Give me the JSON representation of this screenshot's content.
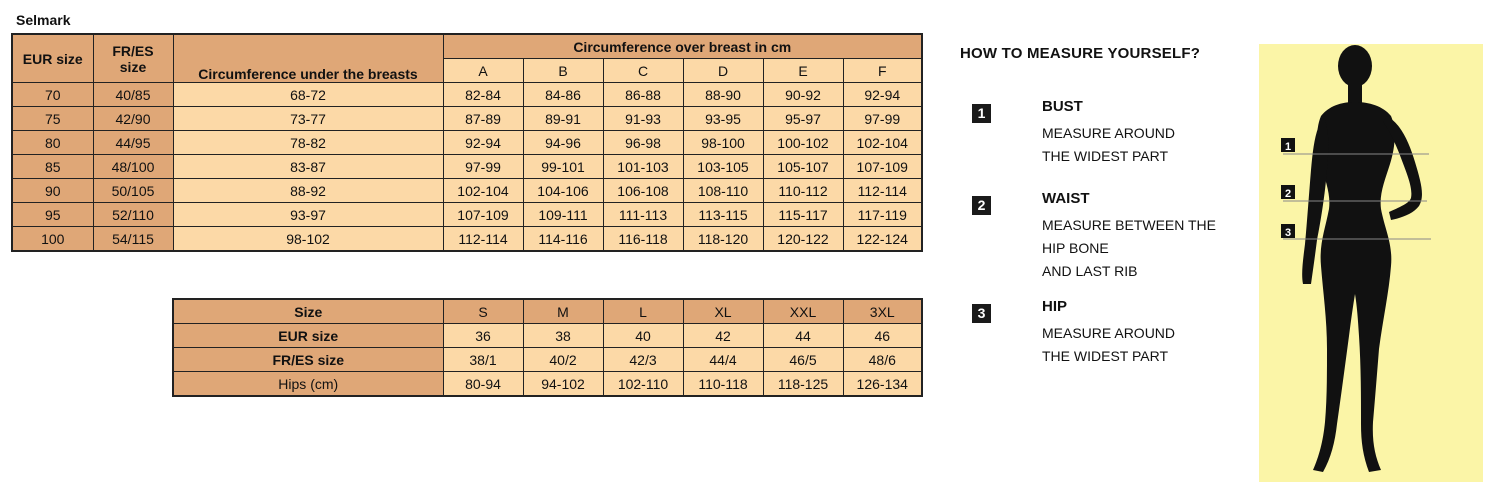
{
  "brand": "Selmark",
  "bra_table": {
    "col_eur": "EUR size",
    "col_fres_1": "FR/ES",
    "col_fres_2": "size",
    "col_under": "Circumference under the breasts",
    "col_over_group": "Circumference over breast in cm",
    "cups": [
      "A",
      "B",
      "C",
      "D",
      "E",
      "F"
    ],
    "rows": [
      {
        "eur": "70",
        "fres": "40/85",
        "under": "68-72",
        "cups": [
          "82-84",
          "84-86",
          "86-88",
          "88-90",
          "90-92",
          "92-94"
        ]
      },
      {
        "eur": "75",
        "fres": "42/90",
        "under": "73-77",
        "cups": [
          "87-89",
          "89-91",
          "91-93",
          "93-95",
          "95-97",
          "97-99"
        ]
      },
      {
        "eur": "80",
        "fres": "44/95",
        "under": "78-82",
        "cups": [
          "92-94",
          "94-96",
          "96-98",
          "98-100",
          "100-102",
          "102-104"
        ]
      },
      {
        "eur": "85",
        "fres": "48/100",
        "under": "83-87",
        "cups": [
          "97-99",
          "99-101",
          "101-103",
          "103-105",
          "105-107",
          "107-109"
        ]
      },
      {
        "eur": "90",
        "fres": "50/105",
        "under": "88-92",
        "cups": [
          "102-104",
          "104-106",
          "106-108",
          "108-110",
          "110-112",
          "112-114"
        ]
      },
      {
        "eur": "95",
        "fres": "52/110",
        "under": "93-97",
        "cups": [
          "107-109",
          "109-111",
          "111-113",
          "113-115",
          "115-117",
          "117-119"
        ]
      },
      {
        "eur": "100",
        "fres": "54/115",
        "under": "98-102",
        "cups": [
          "112-114",
          "114-116",
          "116-118",
          "118-120",
          "120-122",
          "122-124"
        ]
      }
    ]
  },
  "hip_table": {
    "rows": [
      {
        "label": "Size",
        "values": [
          "S",
          "M",
          "L",
          "XL",
          "XXL",
          "3XL"
        ]
      },
      {
        "label": "EUR size",
        "values": [
          "36",
          "38",
          "40",
          "42",
          "44",
          "46"
        ]
      },
      {
        "label": "FR/ES size",
        "values": [
          "38/1",
          "40/2",
          "42/3",
          "44/4",
          "46/5",
          "48/6"
        ]
      },
      {
        "label": "Hips (cm)",
        "values": [
          "80-94",
          "94-102",
          "102-110",
          "110-118",
          "118-125",
          "126-134"
        ]
      }
    ]
  },
  "measure": {
    "title": "HOW TO MEASURE YOURSELF?",
    "steps": [
      {
        "num": "1",
        "title": "BUST",
        "lines": [
          "MEASURE AROUND",
          "THE WIDEST PART"
        ]
      },
      {
        "num": "2",
        "title": "WAIST",
        "lines": [
          "MEASURE BETWEEN THE",
          "HIP BONE",
          "AND LAST RIB"
        ]
      },
      {
        "num": "3",
        "title": "HIP",
        "lines": [
          "MEASURE AROUND",
          "THE WIDEST PART"
        ]
      }
    ]
  },
  "figure_markers": [
    "1",
    "2",
    "3"
  ],
  "colors": {
    "header_bg": "#dfa777",
    "cell_bg": "#fcd9a7",
    "figure_bg": "#fbf5a7",
    "silhouette": "#111111"
  }
}
